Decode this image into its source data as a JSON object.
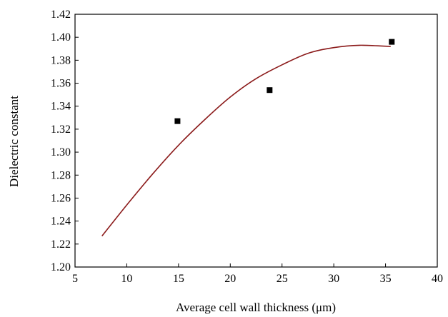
{
  "chart_data": {
    "type": "scatter",
    "title": "",
    "xlabel": "Average cell wall thickness (μm)",
    "ylabel": "Dielectric constant",
    "xlim": [
      5,
      40
    ],
    "ylim": [
      1.2,
      1.42
    ],
    "x_ticks": [
      "5",
      "10",
      "15",
      "20",
      "25",
      "30",
      "35",
      "40"
    ],
    "y_ticks": [
      "1.20",
      "1.22",
      "1.24",
      "1.26",
      "1.28",
      "1.30",
      "1.32",
      "1.34",
      "1.36",
      "1.38",
      "1.40",
      "1.42"
    ],
    "grid": false,
    "legend": "none",
    "series": [
      {
        "type": "scatter",
        "marker": "square",
        "color": "#000000",
        "x": [
          14.9,
          23.8,
          35.6
        ],
        "y": [
          1.327,
          1.354,
          1.396
        ]
      },
      {
        "type": "line",
        "fit": "polynomial-2",
        "color": "#8b1a1a",
        "x": [
          7.6,
          10,
          12.5,
          15,
          17.5,
          20,
          22.5,
          25,
          27.5,
          30,
          32.5,
          35.5
        ],
        "y": [
          1.227,
          1.254,
          1.281,
          1.306,
          1.328,
          1.348,
          1.364,
          1.376,
          1.386,
          1.391,
          1.393,
          1.392
        ]
      }
    ]
  }
}
